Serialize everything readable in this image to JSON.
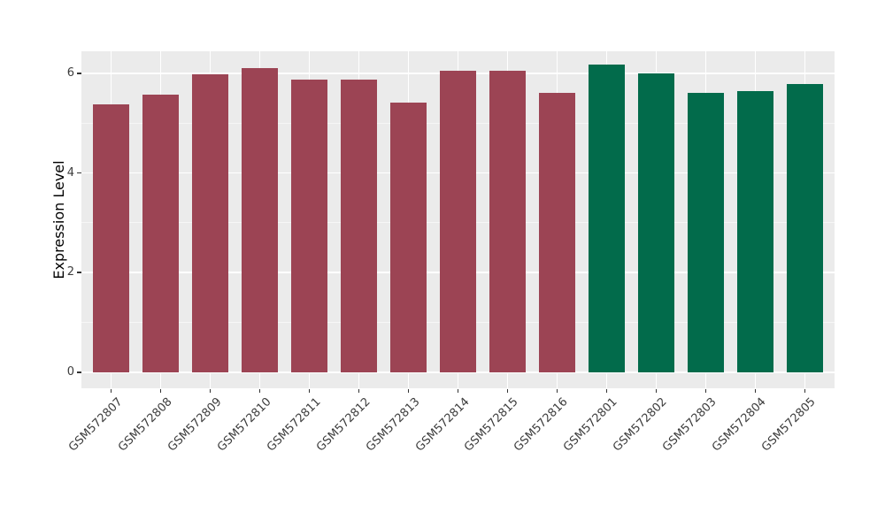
{
  "chart_data": {
    "type": "bar",
    "title": "",
    "xlabel": "",
    "ylabel": "Expression Level",
    "categories": [
      "GSM572807",
      "GSM572808",
      "GSM572809",
      "GSM572810",
      "GSM572811",
      "GSM572812",
      "GSM572813",
      "GSM572814",
      "GSM572815",
      "GSM572816",
      "GSM572801",
      "GSM572802",
      "GSM572803",
      "GSM572804",
      "GSM572805"
    ],
    "values": [
      5.38,
      5.57,
      5.97,
      6.11,
      5.87,
      5.88,
      5.41,
      6.05,
      6.05,
      5.61,
      6.18,
      6.0,
      5.61,
      5.64,
      5.78
    ],
    "colors": [
      "#9C4454",
      "#9C4454",
      "#9C4454",
      "#9C4454",
      "#9C4454",
      "#9C4454",
      "#9C4454",
      "#9C4454",
      "#9C4454",
      "#9C4454",
      "#026B4B",
      "#026B4B",
      "#026B4B",
      "#026B4B",
      "#026B4B"
    ],
    "group_colors": {
      "left_group": "#9C4454",
      "right_group": "#026B4B"
    },
    "yticks": [
      0,
      2,
      4,
      6
    ],
    "yticks_minor": [
      1,
      3,
      5
    ],
    "ylim": [
      -0.32,
      6.44
    ],
    "grid": true,
    "legend_position": "none",
    "panel_background": "#EBEBEB",
    "gridline_color": "#FFFFFF",
    "tick_color": "#333333",
    "tick_label_color": "#3c3c3c",
    "axis_title_color": "#000000",
    "x_label_angle_deg": 45
  }
}
